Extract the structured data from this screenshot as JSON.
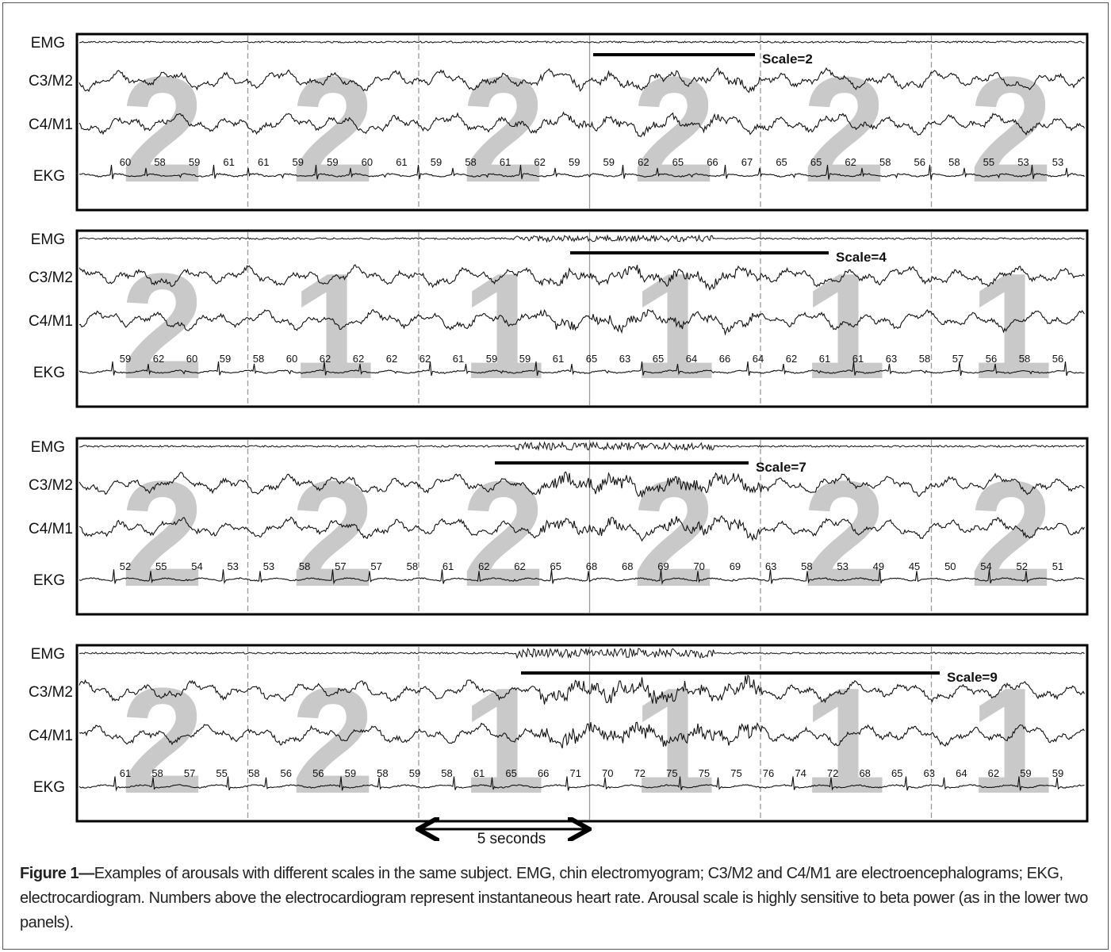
{
  "panels": [
    {
      "channels": [
        "EMG",
        "C3/M2",
        "C4/M1",
        "EKG"
      ],
      "scale_label": "Scale=2",
      "stages": [
        2,
        2,
        2,
        2,
        2,
        2
      ],
      "heart_rates": [
        60,
        58,
        59,
        61,
        61,
        59,
        59,
        60,
        61,
        59,
        58,
        61,
        62,
        59,
        59,
        62,
        65,
        66,
        67,
        65,
        65,
        62,
        58,
        56,
        58,
        55,
        53,
        53
      ]
    },
    {
      "channels": [
        "EMG",
        "C3/M2",
        "C4/M1",
        "EKG"
      ],
      "scale_label": "Scale=4",
      "stages": [
        2,
        1,
        1,
        1,
        1,
        1
      ],
      "heart_rates": [
        59,
        62,
        60,
        59,
        58,
        60,
        62,
        62,
        62,
        62,
        61,
        59,
        59,
        61,
        65,
        63,
        65,
        64,
        66,
        64,
        62,
        61,
        61,
        63,
        58,
        57,
        56,
        58,
        56
      ]
    },
    {
      "channels": [
        "EMG",
        "C3/M2",
        "C4/M1",
        "EKG"
      ],
      "scale_label": "Scale=7",
      "stages": [
        2,
        2,
        2,
        2,
        2,
        2
      ],
      "heart_rates": [
        52,
        55,
        54,
        53,
        53,
        58,
        57,
        57,
        58,
        61,
        62,
        62,
        65,
        68,
        68,
        69,
        70,
        69,
        63,
        58,
        53,
        49,
        45,
        50,
        54,
        52,
        51
      ]
    },
    {
      "channels": [
        "EMG",
        "C3/M2",
        "C4/M1",
        "EKG"
      ],
      "scale_label": "Scale=9",
      "stages": [
        2,
        2,
        1,
        1,
        1,
        1
      ],
      "heart_rates": [
        61,
        58,
        57,
        55,
        58,
        56,
        56,
        59,
        58,
        59,
        58,
        61,
        65,
        66,
        71,
        70,
        72,
        75,
        75,
        75,
        76,
        74,
        72,
        68,
        65,
        63,
        64,
        62,
        59,
        59
      ]
    }
  ],
  "time_scale_label": "5 seconds",
  "caption": {
    "label": "Figure 1—",
    "text": "Examples of arousals with different scales in the same subject. EMG, chin electromyogram; C3/M2 and C4/M1 are electroencephalograms; EKG, electrocardiogram. Numbers above the electrocardiogram represent instantaneous heart rate. Arousal scale is highly sensitive to beta power (as in the lower two panels)."
  }
}
